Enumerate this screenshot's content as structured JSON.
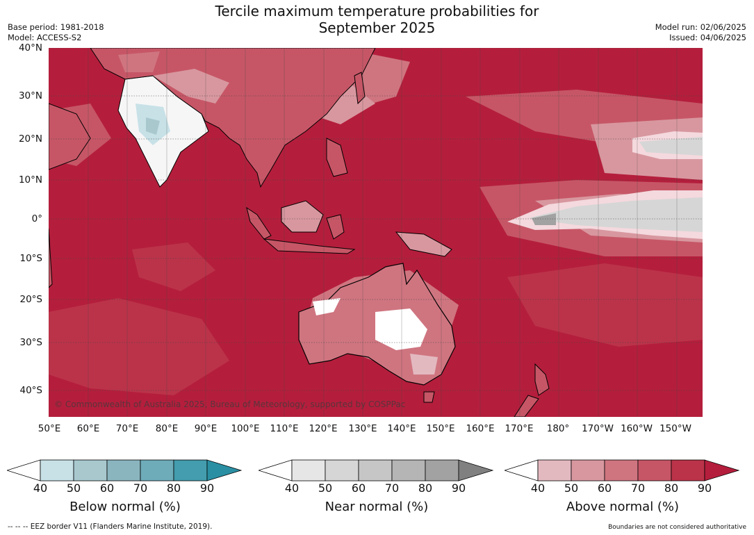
{
  "header": {
    "title_line1": "Tercile maximum temperature probabilities for",
    "title_line2": "September 2025",
    "base_period": "Base period: 1981-2018",
    "model": "Model: ACCESS-S2",
    "model_run": "Model run: 02/06/2025",
    "issued": "Issued: 04/06/2025"
  },
  "map": {
    "lat_labels": [
      "40°N",
      "30°N",
      "20°N",
      "10°N",
      "0°",
      "10°S",
      "20°S",
      "30°S",
      "40°S"
    ],
    "lon_labels": [
      "50°E",
      "60°E",
      "70°E",
      "80°E",
      "90°E",
      "100°E",
      "110°E",
      "120°E",
      "130°E",
      "140°E",
      "150°E",
      "160°E",
      "170°E",
      "180°",
      "170°W",
      "160°W",
      "150°W"
    ],
    "copyright": "© Commonwealth of Australia 2025, Bureau of Meteorology, supported by COSPPac",
    "background_color": "#b41e3c"
  },
  "legends": [
    {
      "title": "Below normal (%)",
      "ticks": [
        "40",
        "50",
        "60",
        "70",
        "80",
        "90"
      ],
      "colors": [
        "#ffffff",
        "#c7e1e7",
        "#a8c8ce",
        "#8ab5bf",
        "#6eacba",
        "#439dae",
        "#2a8fa3"
      ]
    },
    {
      "title": "Near normal (%)",
      "ticks": [
        "40",
        "50",
        "60",
        "70",
        "80",
        "90"
      ],
      "colors": [
        "#ffffff",
        "#e6e6e6",
        "#d6d6d6",
        "#c6c6c6",
        "#b5b5b5",
        "#a2a2a2",
        "#808080"
      ]
    },
    {
      "title": "Above normal (%)",
      "ticks": [
        "40",
        "50",
        "60",
        "70",
        "80",
        "90"
      ],
      "colors": [
        "#ffffff",
        "#e3b9c0",
        "#d8979f",
        "#cf7580",
        "#c65666",
        "#bb3349",
        "#b41e3c"
      ]
    }
  ],
  "footer": {
    "eez_note": "--  --  -- EEZ border V11 (Flanders Marine Institute, 2019).",
    "disclaimer": "Boundaries are not considered authoritative"
  }
}
